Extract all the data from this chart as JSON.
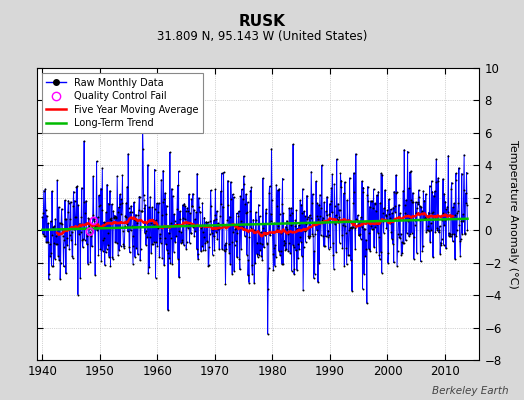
{
  "title": "RUSK",
  "subtitle": "31.809 N, 95.143 W (United States)",
  "ylabel": "Temperature Anomaly (°C)",
  "watermark": "Berkeley Earth",
  "year_start": 1940,
  "year_end": 2014,
  "ylim": [
    -8,
    10
  ],
  "yticks": [
    -8,
    -6,
    -4,
    -2,
    0,
    2,
    4,
    6,
    8,
    10
  ],
  "xticks": [
    1940,
    1950,
    1960,
    1970,
    1980,
    1990,
    2000,
    2010
  ],
  "bg_color": "#d8d8d8",
  "plot_bg_color": "#ffffff",
  "raw_line_color": "#0000ff",
  "raw_dot_color": "#000000",
  "qc_fail_color": "#ff00ff",
  "moving_avg_color": "#ff0000",
  "trend_color": "#00bb00",
  "legend_labels": [
    "Raw Monthly Data",
    "Quality Control Fail",
    "Five Year Moving Average",
    "Long-Term Trend"
  ],
  "seed": 42,
  "trend_slope": 0.008,
  "qc_fail_years": [
    1948.25,
    1948.92
  ]
}
